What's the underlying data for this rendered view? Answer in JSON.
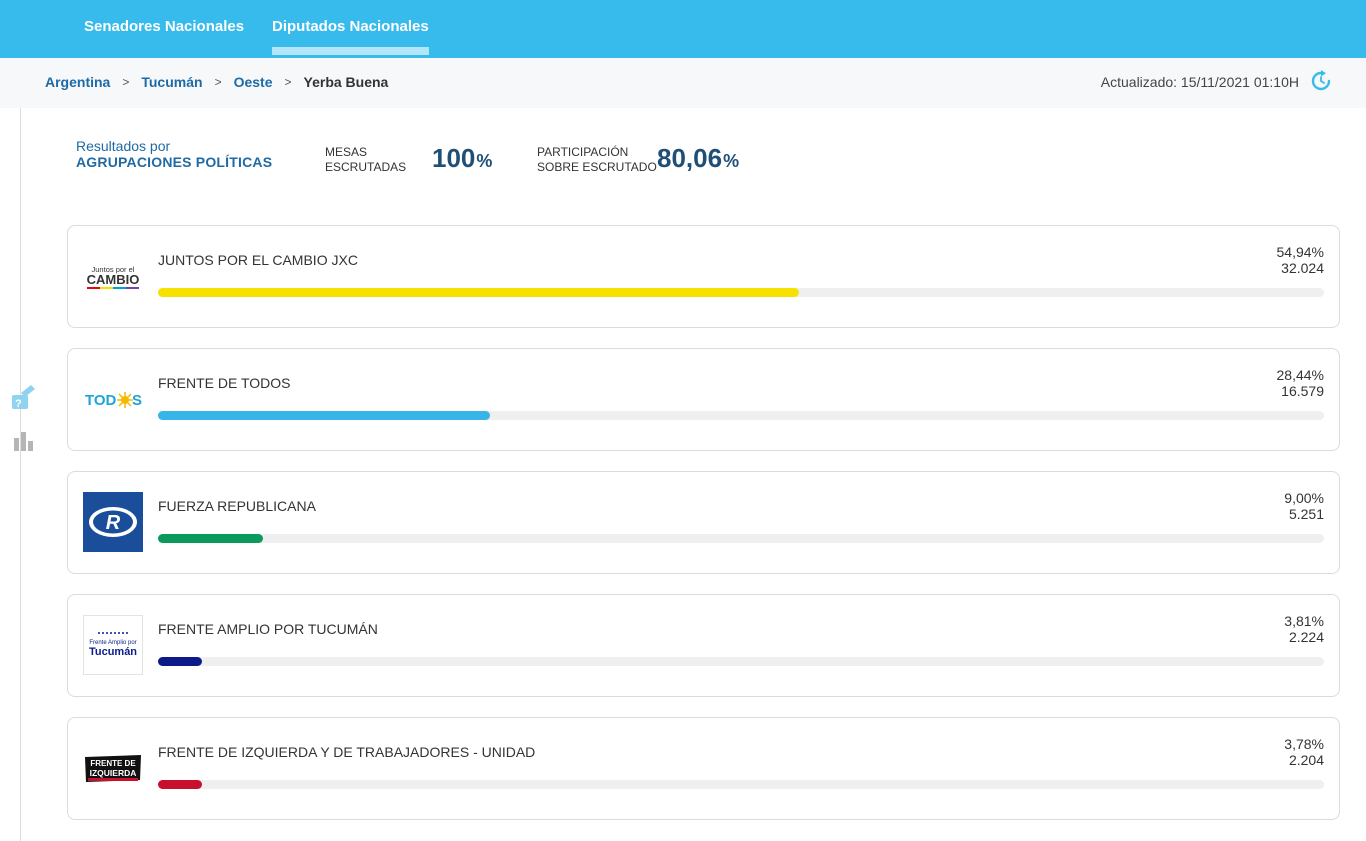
{
  "nav": {
    "tabs": [
      {
        "label": "Senadores Nacionales",
        "active": false
      },
      {
        "label": "Diputados Nacionales",
        "active": true
      }
    ]
  },
  "breadcrumb": {
    "items": [
      "Argentina",
      "Tucumán",
      "Oeste",
      "Yerba Buena"
    ],
    "separator": ">"
  },
  "updated": "Actualizado: 15/11/2021 01:10H",
  "summary": {
    "results_by": "Resultados por",
    "grouping": "AGRUPACIONES POLÍTICAS",
    "mesas_label_1": "MESAS",
    "mesas_label_2": "ESCRUTADAS",
    "mesas_value": "100",
    "participacion_label_1": "PARTICIPACIÓN",
    "participacion_label_2": "SOBRE ESCRUTADO",
    "participacion_value": "80,06",
    "pct_sign": "%"
  },
  "parties": [
    {
      "name": "JUNTOS POR EL CAMBIO JXC",
      "percent": "54,94%",
      "votes": "32.024",
      "share": 54.94,
      "color": "#f6e100",
      "logo_text": [
        "Juntos por el",
        "CAMBIO"
      ]
    },
    {
      "name": "FRENTE DE TODOS",
      "percent": "28,44%",
      "votes": "16.579",
      "share": 28.44,
      "color": "#37b4e8",
      "logo_text": [
        "TOD",
        "S"
      ]
    },
    {
      "name": "FUERZA REPUBLICANA",
      "percent": "9,00%",
      "votes": "5.251",
      "share": 9.0,
      "color": "#0a9a5c",
      "logo_text": [
        "R"
      ]
    },
    {
      "name": "FRENTE AMPLIO POR TUCUMÁN",
      "percent": "3,81%",
      "votes": "2.224",
      "share": 3.81,
      "color": "#0d1b8a",
      "logo_text": [
        "Frente Amplio por",
        "Tucumán"
      ]
    },
    {
      "name": "FRENTE DE IZQUIERDA Y DE TRABAJADORES - UNIDAD",
      "percent": "3,78%",
      "votes": "2.204",
      "share": 3.78,
      "color": "#c8102e",
      "logo_text": [
        "FRENTE DE",
        "IZQUIERDA"
      ]
    }
  ],
  "icons": {
    "refresh": "refresh-icon",
    "vote": "ballot-box-icon",
    "chart": "bar-chart-icon"
  }
}
